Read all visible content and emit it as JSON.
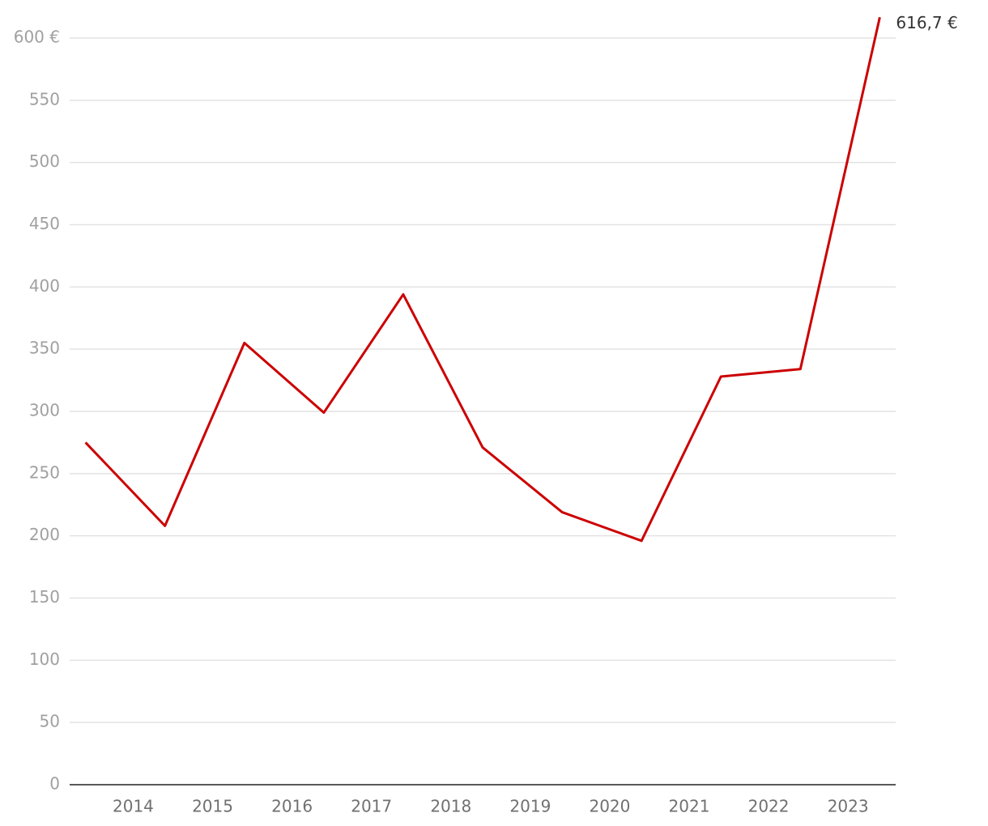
{
  "chart_data": {
    "type": "line",
    "x": [
      2013.4,
      2014.4,
      2015.4,
      2016.4,
      2017.4,
      2018.4,
      2019.4,
      2020.4,
      2021.4,
      2022.4,
      2023.4
    ],
    "series": [
      {
        "color": "#cc0000",
        "values": [
          275,
          208,
          355,
          299,
          394,
          271,
          219,
          196,
          328,
          334,
          616.7
        ],
        "value_labels": [
          null,
          null,
          null,
          null,
          null,
          null,
          null,
          null,
          null,
          null,
          "616,7 €"
        ]
      }
    ],
    "xlim": [
      2013.2,
      2023.6
    ],
    "xticks": [
      2014,
      2015,
      2016,
      2017,
      2018,
      2019,
      2020,
      2021,
      2022,
      2023
    ],
    "ylim": [
      0,
      620
    ],
    "yticks": [
      0,
      50,
      100,
      150,
      200,
      250,
      300,
      350,
      400,
      450,
      500,
      550,
      {
        "value": 600,
        "label": "600 €"
      }
    ],
    "grid": true
  }
}
